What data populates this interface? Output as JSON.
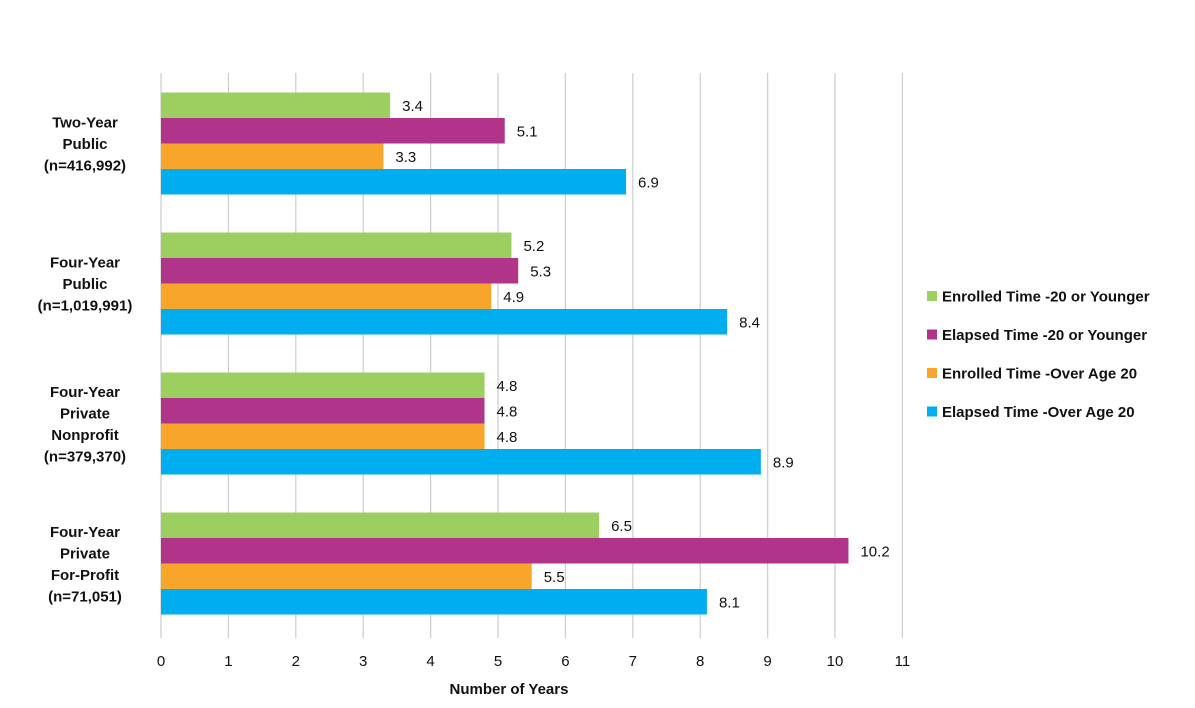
{
  "chart_data": {
    "type": "bar",
    "orientation": "horizontal",
    "categories": [
      [
        "Two-Year",
        "Public",
        "(n=416,992)"
      ],
      [
        "Four-Year",
        "Public",
        "(n=1,019,991)"
      ],
      [
        "Four-Year",
        "Private",
        "Nonprofit",
        "(n=379,370)"
      ],
      [
        "Four-Year",
        "Private",
        "For-Profit",
        "(n=71,051)"
      ]
    ],
    "series": [
      {
        "name": "Enrolled Time -20 or Younger",
        "color": "#9ccf60",
        "values": [
          3.4,
          5.2,
          4.8,
          6.5
        ],
        "labels": [
          "3.4",
          "5.2",
          "4.8",
          "6.5"
        ]
      },
      {
        "name": "Elapsed Time -20 or Younger",
        "color": "#b0358a",
        "values": [
          5.1,
          5.3,
          4.8,
          10.2
        ],
        "labels": [
          "5.1",
          "5.3",
          "4.8",
          "10.2"
        ]
      },
      {
        "name": "Enrolled Time -Over Age 20",
        "color": "#f8a52c",
        "values": [
          3.3,
          4.9,
          4.8,
          5.5
        ],
        "labels": [
          "3.3",
          "4.9",
          "4.8",
          "5.5"
        ]
      },
      {
        "name": "Elapsed Time -Over Age 20",
        "color": "#00adee",
        "values": [
          6.9,
          8.4,
          8.9,
          8.1
        ],
        "labels": [
          "6.9",
          "8.4",
          "8.9",
          "8.1"
        ]
      }
    ],
    "xlabel": "Number of Years",
    "xlim": [
      0,
      11
    ],
    "xticks": [
      "0",
      "1",
      "2",
      "3",
      "4",
      "5",
      "6",
      "7",
      "8",
      "9",
      "10",
      "11"
    ],
    "grid": true,
    "legend_position": "right"
  }
}
